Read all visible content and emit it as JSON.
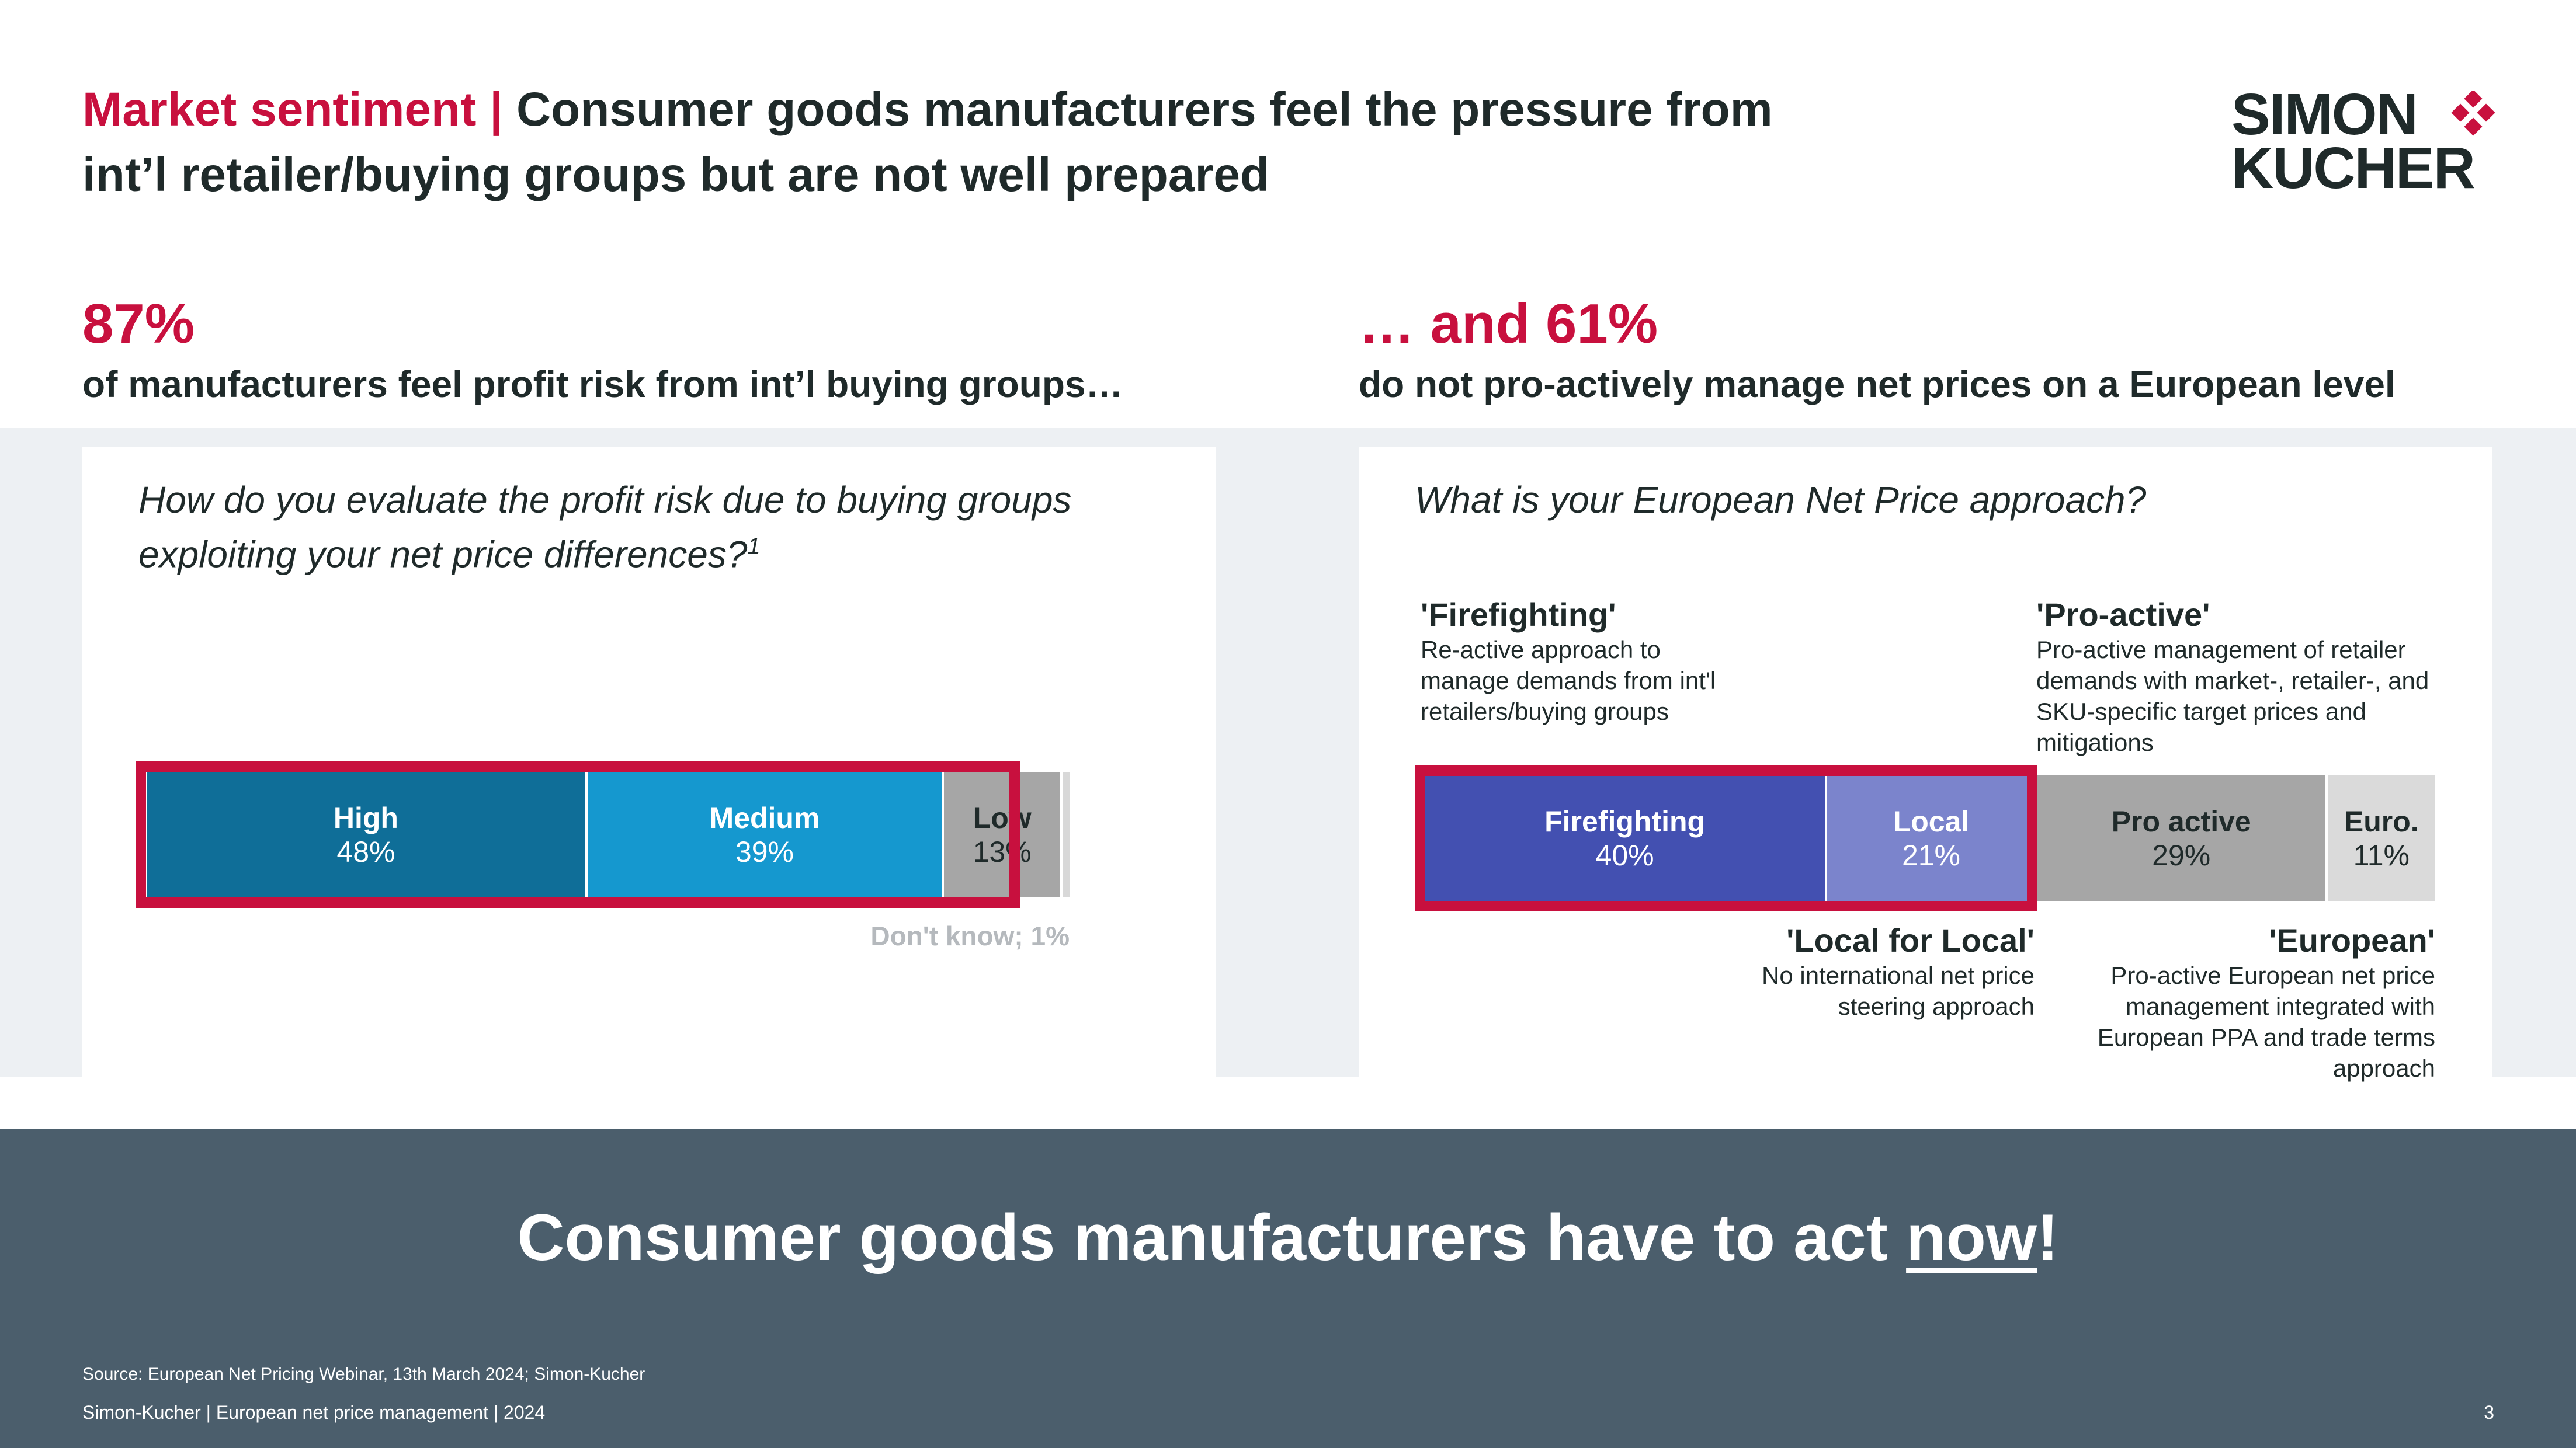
{
  "header": {
    "title_accent": "Market sentiment |",
    "title_rest": " Consumer goods manufacturers feel the pressure from int’l retailer/buying groups but are not well prepared",
    "logo_line1": "SIMON",
    "logo_line2": "KUCHER"
  },
  "left": {
    "stat": "87%",
    "stat_text": "of manufacturers feel profit risk from int’l buying groups…",
    "question": "How do you evaluate the profit risk due to buying groups exploiting your net price differences?",
    "question_footnote": "1",
    "dont_know_label": "Don't know; 1%"
  },
  "right": {
    "stat": "… and 61%",
    "stat_text": "do not pro-actively manage net prices on a European level",
    "question": "What is your European Net Price approach?",
    "annotations": {
      "firefighting_title": "'Firefighting'",
      "firefighting_text": "Re-active approach to manage demands from int'l retailers/buying groups",
      "proactive_title": "'Pro-active'",
      "proactive_text": "Pro-active management of retailer demands with market-, retailer-, and SKU-specific target prices and mitigations",
      "local_title": "'Local for Local'",
      "local_text": "No international net price steering approach",
      "european_title": "'European'",
      "european_text": "Pro-active European net price management integrated with European PPA and trade terms approach"
    }
  },
  "chart_data": [
    {
      "type": "bar",
      "orientation": "horizontal-stacked-100",
      "categories": [
        "High",
        "Medium",
        "Low",
        "Don't know"
      ],
      "values": [
        48,
        39,
        13,
        1
      ],
      "value_labels": [
        "48%",
        "39%",
        "13%",
        "1%"
      ],
      "colors": [
        "#0f6e98",
        "#1598cf",
        "#a6a6a6",
        "#d8d8d8"
      ],
      "highlighted": [
        "High",
        "Medium"
      ]
    },
    {
      "type": "bar",
      "orientation": "horizontal-stacked-100",
      "categories": [
        "Firefighting",
        "Local",
        "Pro active",
        "Euro."
      ],
      "values": [
        40,
        21,
        29,
        11
      ],
      "value_labels": [
        "40%",
        "21%",
        "29%",
        "11%"
      ],
      "colors": [
        "#4350b1",
        "#7b84cc",
        "#a6a6a6",
        "#dadada"
      ],
      "highlighted": [
        "Firefighting",
        "Local"
      ]
    }
  ],
  "footer": {
    "cta_before": "Consumer goods manufacturers have to act ",
    "cta_underlined": "now",
    "cta_after": "!",
    "source": "Source: European Net Pricing Webinar, 13th March 2024; Simon-Kucher",
    "footer_text": "Simon-Kucher | European net price management | 2024",
    "page_number": "3"
  },
  "colors": {
    "accent": "#c8103e",
    "text": "#1f2a2a",
    "band": "#edf0f3",
    "footer": "#4b5e6c"
  }
}
